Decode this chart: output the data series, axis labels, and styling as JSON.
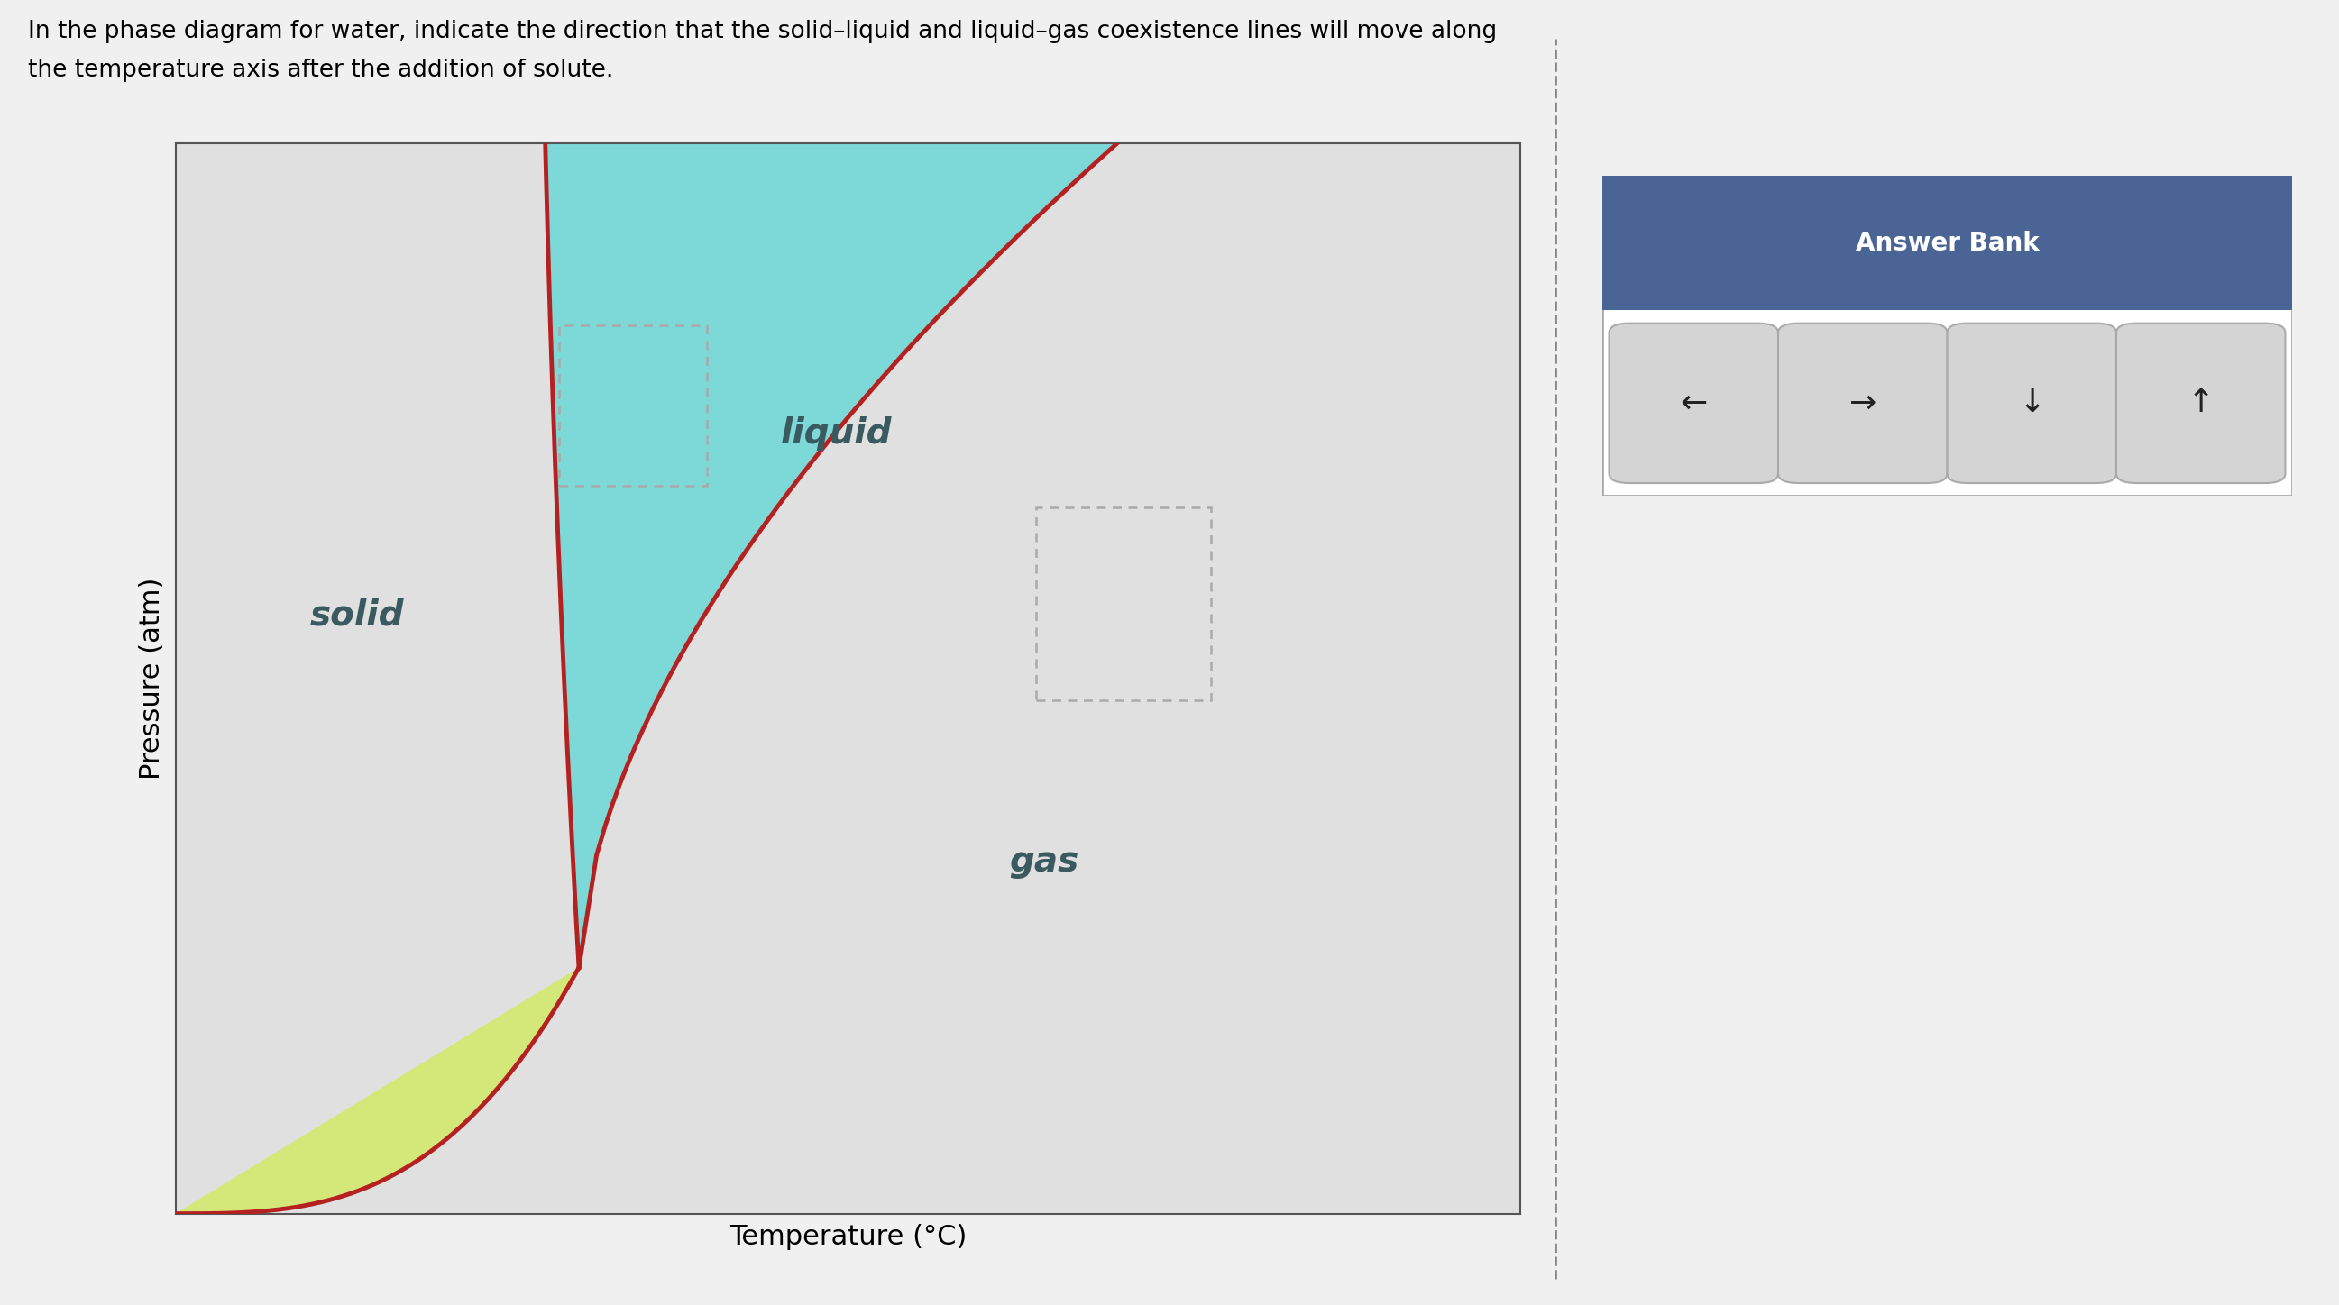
{
  "title_line1": "In the phase diagram for water, indicate the direction that the solid–liquid and liquid–gas coexistence lines will move along",
  "title_line2": "the temperature axis after the addition of solute.",
  "xlabel": "Temperature (°C)",
  "ylabel": "Pressure (atm)",
  "fig_bg_color": "#f0f0f0",
  "plot_bg_color": "#e0e0e0",
  "solid_color": "#d4e87a",
  "liquid_color": "#7dd8d8",
  "line_color": "#b52020",
  "answer_bank_header_color": "#4a6496",
  "answer_bank_bg": "#ffffff",
  "answer_bank_header_text": "Answer Bank",
  "label_solid": "solid",
  "label_liquid": "liquid",
  "label_gas": "gas",
  "label_color": "#3a5a60",
  "dashed_box_color": "#aaaaaa",
  "arrow_symbols": [
    "←",
    "→",
    "↓",
    "↑"
  ],
  "separator_color": "#888888"
}
